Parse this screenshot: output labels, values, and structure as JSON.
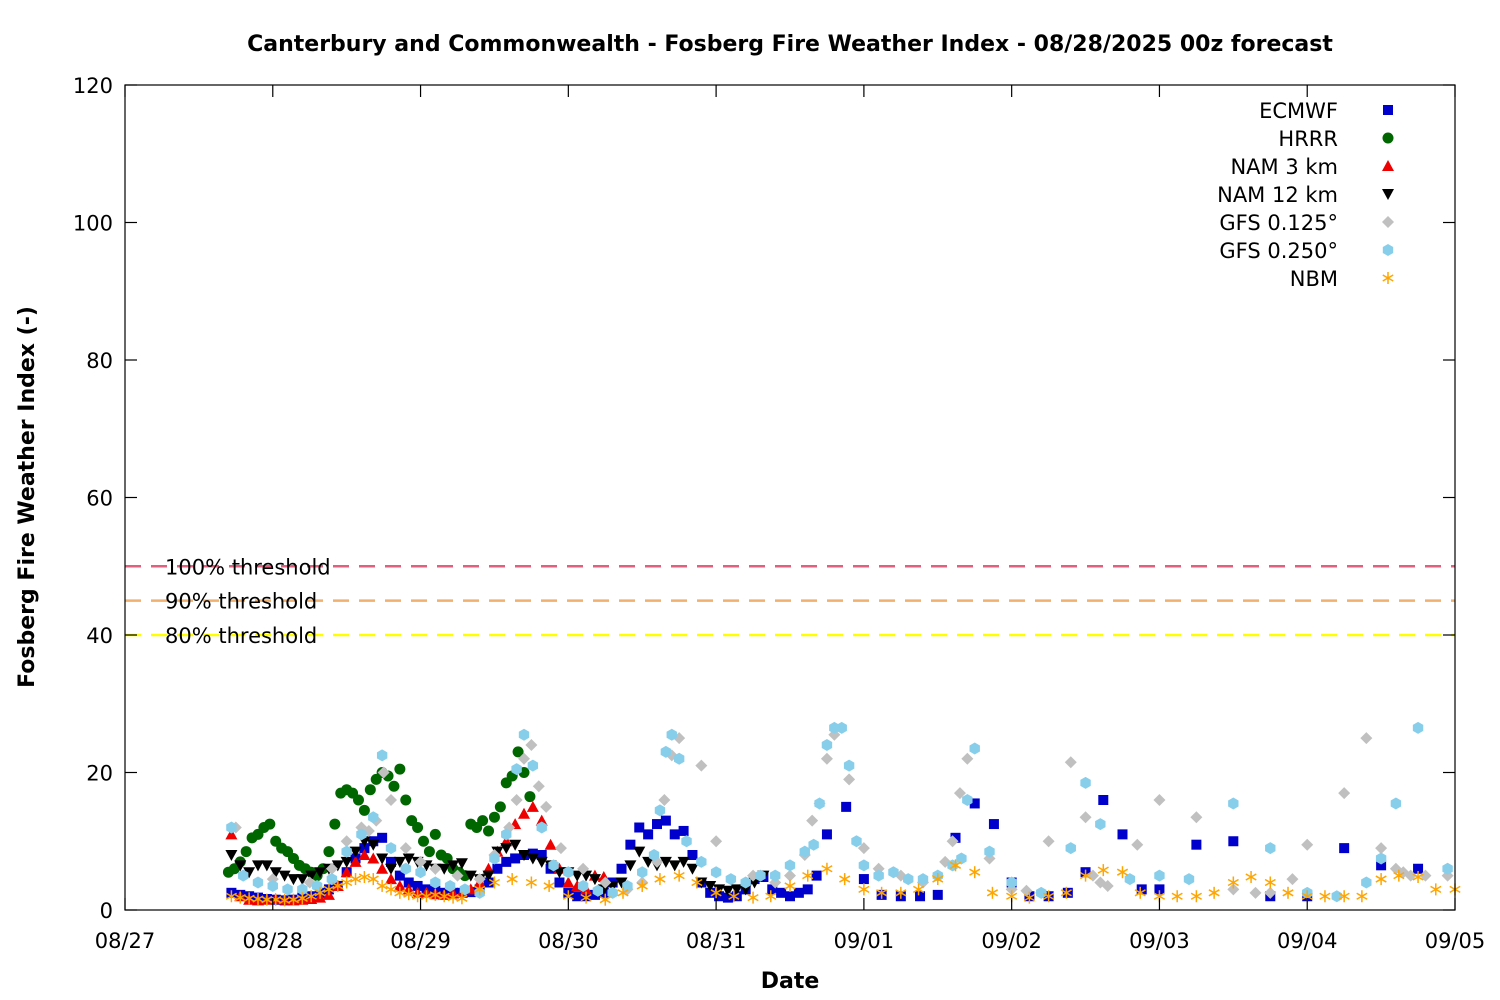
{
  "chart_data": {
    "type": "scatter",
    "title": "Canterbury and Commonwealth - Fosberg Fire Weather Index - 08/28/2025 00z forecast",
    "xlabel": "Date",
    "ylabel": "Fosberg Fire Weather Index (-)",
    "xlim": [
      "08/27",
      "09/05"
    ],
    "ylim": [
      0,
      120
    ],
    "x_unit": "days (fractional) from 08/27",
    "x_ticks": [
      "08/27",
      "08/28",
      "08/29",
      "08/30",
      "08/31",
      "09/01",
      "09/02",
      "09/03",
      "09/04",
      "09/05"
    ],
    "y_ticks": [
      0,
      20,
      40,
      60,
      80,
      100,
      120
    ],
    "grid": false,
    "legend_position": "top-right",
    "thresholds": [
      {
        "label": "100% threshold",
        "value": 50,
        "color": "#e0607e"
      },
      {
        "label": "90% threshold",
        "value": 45,
        "color": "#f0b070"
      },
      {
        "label": "80% threshold",
        "value": 40,
        "color": "#ffff00"
      }
    ],
    "series": [
      {
        "name": "ECMWF",
        "marker": "square",
        "color": "#0000cc",
        "x": [
          0.72,
          0.78,
          0.84,
          0.9,
          0.96,
          1.02,
          1.08,
          1.14,
          1.2,
          1.26,
          1.32,
          1.38,
          1.44,
          1.5,
          1.56,
          1.62,
          1.68,
          1.74,
          1.8,
          1.86,
          1.92,
          1.98,
          2.04,
          2.1,
          2.16,
          2.22,
          2.28,
          2.34,
          2.4,
          2.46,
          2.52,
          2.58,
          2.64,
          2.7,
          2.76,
          2.82,
          2.88,
          2.94,
          3.0,
          3.06,
          3.12,
          3.18,
          3.24,
          3.3,
          3.36,
          3.42,
          3.48,
          3.54,
          3.6,
          3.66,
          3.72,
          3.78,
          3.84,
          3.9,
          3.96,
          4.02,
          4.08,
          4.14,
          4.2,
          4.26,
          4.32,
          4.38,
          4.44,
          4.5,
          4.56,
          4.62,
          4.68,
          4.75,
          4.88,
          5.0,
          5.12,
          5.25,
          5.38,
          5.5,
          5.62,
          5.75,
          5.88,
          6.0,
          6.12,
          6.25,
          6.38,
          6.5,
          6.62,
          6.75,
          6.88,
          7.0,
          7.25,
          7.5,
          7.75,
          8.0,
          8.25,
          8.5,
          8.75
        ],
        "y": [
          2.5,
          2.2,
          2.0,
          1.8,
          1.6,
          1.5,
          1.4,
          1.5,
          1.8,
          2.0,
          2.5,
          3.0,
          3.5,
          5.5,
          7.5,
          9.0,
          10.0,
          10.5,
          7.0,
          5.0,
          4.0,
          3.5,
          3.0,
          2.8,
          2.5,
          2.5,
          2.5,
          2.6,
          3.0,
          4.0,
          6.0,
          7.0,
          7.5,
          8.0,
          8.2,
          8.0,
          6.0,
          4.0,
          2.5,
          2.0,
          2.0,
          2.2,
          2.5,
          4.0,
          6.0,
          9.5,
          12.0,
          11.0,
          12.5,
          13.0,
          11.0,
          11.5,
          8.0,
          4.0,
          2.5,
          2.0,
          1.8,
          2.0,
          3.0,
          4.5,
          4.8,
          3.0,
          2.5,
          2.0,
          2.5,
          3.0,
          5.0,
          11.0,
          15.0,
          4.5,
          2.2,
          2.0,
          2.0,
          2.2,
          10.5,
          15.5,
          12.5,
          4.0,
          2.0,
          2.0,
          2.5,
          5.5,
          16.0,
          11.0,
          3.0,
          3.0,
          9.5,
          10.0,
          2.0,
          2.0,
          9.0,
          6.5,
          6.0
        ]
      },
      {
        "name": "HRRR",
        "marker": "circle",
        "color": "#006600",
        "x": [
          0.7,
          0.74,
          0.78,
          0.82,
          0.86,
          0.9,
          0.94,
          0.98,
          1.02,
          1.06,
          1.1,
          1.14,
          1.18,
          1.22,
          1.26,
          1.3,
          1.34,
          1.38,
          1.42,
          1.46,
          1.5,
          1.54,
          1.58,
          1.62,
          1.66,
          1.7,
          1.74,
          1.78,
          1.82,
          1.86,
          1.9,
          1.94,
          1.98,
          2.02,
          2.06,
          2.1,
          2.14,
          2.18,
          2.22,
          2.26,
          2.3,
          2.34,
          2.38,
          2.42,
          2.46,
          2.5,
          2.54,
          2.58,
          2.62,
          2.66,
          2.7,
          2.74
        ],
        "y": [
          5.5,
          6.0,
          7.0,
          8.5,
          10.5,
          11.0,
          12.0,
          12.5,
          10.0,
          9.0,
          8.5,
          7.5,
          6.5,
          6.0,
          5.5,
          5.0,
          6.0,
          8.5,
          12.5,
          17.0,
          17.5,
          17.0,
          16.0,
          14.5,
          17.5,
          19.0,
          20.0,
          19.5,
          18.0,
          20.5,
          16.0,
          13.0,
          12.0,
          10.0,
          8.5,
          11.0,
          8.0,
          7.5,
          6.0,
          5.5,
          5.0,
          12.5,
          12.0,
          13.0,
          11.5,
          13.5,
          15.0,
          18.5,
          19.5,
          23.0,
          20.0,
          16.5
        ]
      },
      {
        "name": "NAM 3 km",
        "marker": "triangle-up",
        "color": "#ee0000",
        "x": [
          0.72,
          0.78,
          0.84,
          0.9,
          0.96,
          1.02,
          1.08,
          1.14,
          1.2,
          1.26,
          1.32,
          1.38,
          1.44,
          1.5,
          1.56,
          1.62,
          1.68,
          1.74,
          1.8,
          1.86,
          1.92,
          1.98,
          2.04,
          2.1,
          2.16,
          2.22,
          2.28,
          2.34,
          2.4,
          2.46,
          2.52,
          2.58,
          2.64,
          2.7,
          2.76,
          2.82,
          2.88,
          2.94,
          3.0,
          3.06,
          3.12,
          3.18,
          3.24
        ],
        "y": [
          11.0,
          2.0,
          1.5,
          1.4,
          1.5,
          1.6,
          1.5,
          1.4,
          1.5,
          1.6,
          1.8,
          2.2,
          3.5,
          5.5,
          7.0,
          8.0,
          7.5,
          6.0,
          4.5,
          3.5,
          3.0,
          2.5,
          2.5,
          2.3,
          2.2,
          2.4,
          2.5,
          3.0,
          4.0,
          6.0,
          8.5,
          10.0,
          12.5,
          14.0,
          15.0,
          13.0,
          9.5,
          6.0,
          4.0,
          3.5,
          3.0,
          5.0,
          4.8
        ]
      },
      {
        "name": "NAM 12 km",
        "marker": "triangle-down",
        "color": "#000000",
        "x": [
          0.72,
          0.78,
          0.84,
          0.9,
          0.96,
          1.02,
          1.08,
          1.14,
          1.2,
          1.26,
          1.32,
          1.38,
          1.44,
          1.5,
          1.56,
          1.62,
          1.68,
          1.74,
          1.8,
          1.86,
          1.92,
          1.98,
          2.04,
          2.1,
          2.16,
          2.22,
          2.28,
          2.34,
          2.4,
          2.46,
          2.52,
          2.58,
          2.64,
          2.7,
          2.76,
          2.82,
          2.88,
          2.94,
          3.0,
          3.06,
          3.12,
          3.18,
          3.24,
          3.3,
          3.36,
          3.42,
          3.48,
          3.54,
          3.6,
          3.66,
          3.72,
          3.78,
          3.84,
          3.9,
          3.96,
          4.02,
          4.08,
          4.14,
          4.2,
          4.26,
          4.32
        ],
        "y": [
          8.0,
          6.5,
          5.5,
          6.5,
          6.5,
          5.5,
          5.0,
          4.5,
          4.5,
          5.0,
          5.5,
          6.0,
          6.5,
          7.0,
          8.5,
          10.0,
          9.5,
          7.5,
          6.0,
          7.0,
          7.5,
          7.0,
          6.5,
          6.0,
          6.0,
          6.5,
          6.8,
          5.0,
          4.5,
          5.0,
          8.5,
          9.0,
          9.5,
          8.0,
          7.5,
          7.0,
          6.5,
          5.5,
          5.5,
          5.0,
          5.0,
          4.5,
          3.0,
          3.5,
          4.0,
          6.5,
          8.5,
          7.0,
          6.5,
          7.0,
          6.5,
          7.0,
          6.0,
          4.0,
          3.5,
          3.0,
          2.8,
          3.0,
          3.0,
          4.0,
          5.0
        ]
      },
      {
        "name": "GFS 0.125°",
        "marker": "diamond",
        "color": "#c0c0c0",
        "x": [
          0.75,
          1.0,
          1.25,
          1.4,
          1.5,
          1.6,
          1.65,
          1.7,
          1.75,
          1.8,
          1.9,
          2.0,
          2.1,
          2.25,
          2.4,
          2.5,
          2.6,
          2.65,
          2.7,
          2.75,
          2.8,
          2.85,
          2.95,
          3.1,
          3.25,
          3.4,
          3.5,
          3.6,
          3.65,
          3.7,
          3.75,
          3.9,
          4.0,
          4.25,
          4.4,
          4.5,
          4.6,
          4.65,
          4.7,
          4.75,
          4.8,
          4.9,
          5.0,
          5.1,
          5.25,
          5.4,
          5.5,
          5.55,
          5.6,
          5.65,
          5.7,
          5.85,
          6.0,
          6.1,
          6.2,
          6.25,
          6.4,
          6.5,
          6.55,
          6.6,
          6.65,
          6.85,
          7.0,
          7.25,
          7.5,
          7.65,
          7.75,
          7.9,
          8.0,
          8.25,
          8.4,
          8.5,
          8.6,
          8.65,
          8.7,
          8.8,
          8.95
        ],
        "y": [
          12.0,
          4.5,
          4.0,
          6.0,
          10.0,
          12.0,
          11.5,
          13.0,
          20.0,
          16.0,
          9.0,
          7.0,
          6.0,
          5.0,
          4.5,
          8.0,
          12.0,
          16.0,
          22.0,
          24.0,
          18.0,
          15.0,
          9.0,
          6.0,
          4.0,
          3.0,
          4.0,
          7.0,
          16.0,
          22.5,
          25.0,
          21.0,
          10.0,
          5.0,
          4.0,
          5.0,
          8.0,
          13.0,
          15.5,
          22.0,
          25.5,
          19.0,
          9.0,
          6.0,
          5.0,
          4.0,
          5.0,
          7.0,
          10.0,
          17.0,
          22.0,
          7.5,
          3.0,
          2.8,
          2.5,
          10.0,
          21.5,
          13.5,
          5.0,
          4.0,
          3.5,
          9.5,
          16.0,
          13.5,
          3.0,
          2.5,
          2.5,
          4.5,
          9.5,
          17.0,
          25.0,
          9.0,
          6.0,
          5.5,
          5.0,
          5.0,
          5.0
        ]
      },
      {
        "name": "GFS 0.250°",
        "marker": "hexagon",
        "color": "#87ceeb",
        "x": [
          0.72,
          0.8,
          0.9,
          1.0,
          1.1,
          1.2,
          1.3,
          1.4,
          1.5,
          1.6,
          1.68,
          1.74,
          1.8,
          1.9,
          2.0,
          2.1,
          2.2,
          2.3,
          2.4,
          2.5,
          2.58,
          2.65,
          2.7,
          2.76,
          2.82,
          2.9,
          3.0,
          3.1,
          3.2,
          3.3,
          3.4,
          3.5,
          3.58,
          3.62,
          3.66,
          3.7,
          3.75,
          3.8,
          3.9,
          4.0,
          4.1,
          4.2,
          4.3,
          4.4,
          4.5,
          4.6,
          4.66,
          4.7,
          4.75,
          4.8,
          4.85,
          4.9,
          4.95,
          5.0,
          5.1,
          5.2,
          5.3,
          5.4,
          5.5,
          5.6,
          5.66,
          5.7,
          5.75,
          5.85,
          6.0,
          6.2,
          6.4,
          6.5,
          6.6,
          6.8,
          7.0,
          7.2,
          7.5,
          7.75,
          8.0,
          8.2,
          8.4,
          8.5,
          8.6,
          8.75,
          8.95
        ],
        "y": [
          12.0,
          5.0,
          4.0,
          3.5,
          3.0,
          3.0,
          3.5,
          4.5,
          8.5,
          11.0,
          13.5,
          22.5,
          9.0,
          6.0,
          5.5,
          4.0,
          3.5,
          3.0,
          2.5,
          7.5,
          11.0,
          20.5,
          25.5,
          21.0,
          12.0,
          6.5,
          5.5,
          3.5,
          2.8,
          2.5,
          3.5,
          5.5,
          8.0,
          14.5,
          23.0,
          25.5,
          22.0,
          10.0,
          7.0,
          5.5,
          4.5,
          4.0,
          5.0,
          5.0,
          6.5,
          8.5,
          9.5,
          15.5,
          24.0,
          26.5,
          26.5,
          21.0,
          10.0,
          6.5,
          5.0,
          5.5,
          4.5,
          4.5,
          5.0,
          6.5,
          7.5,
          16.0,
          23.5,
          8.5,
          4.0,
          2.5,
          9.0,
          18.5,
          12.5,
          4.5,
          5.0,
          4.5,
          15.5,
          9.0,
          2.5,
          2.0,
          4.0,
          7.5,
          15.5,
          26.5,
          6.0
        ]
      },
      {
        "name": "NBM",
        "marker": "asterisk",
        "color": "#ffa500",
        "x": [
          0.72,
          0.78,
          0.84,
          0.9,
          0.96,
          1.02,
          1.08,
          1.14,
          1.2,
          1.26,
          1.32,
          1.38,
          1.44,
          1.5,
          1.56,
          1.62,
          1.68,
          1.74,
          1.8,
          1.86,
          1.92,
          1.98,
          2.04,
          2.1,
          2.16,
          2.22,
          2.28,
          2.4,
          2.5,
          2.62,
          2.75,
          2.87,
          3.0,
          3.12,
          3.25,
          3.37,
          3.5,
          3.62,
          3.75,
          3.87,
          4.0,
          4.12,
          4.25,
          4.37,
          4.5,
          4.62,
          4.75,
          4.87,
          5.0,
          5.12,
          5.25,
          5.37,
          5.5,
          5.62,
          5.75,
          5.87,
          6.0,
          6.12,
          6.25,
          6.37,
          6.5,
          6.62,
          6.75,
          6.87,
          7.0,
          7.12,
          7.25,
          7.37,
          7.5,
          7.62,
          7.75,
          7.87,
          8.0,
          8.12,
          8.25,
          8.37,
          8.5,
          8.62,
          8.75,
          8.87,
          9.0
        ],
        "y": [
          2.0,
          1.8,
          1.7,
          1.6,
          1.5,
          1.5,
          1.4,
          1.5,
          1.7,
          2.0,
          2.5,
          3.0,
          3.5,
          4.0,
          4.5,
          4.8,
          4.5,
          3.5,
          3.0,
          2.5,
          2.3,
          2.0,
          2.0,
          2.2,
          2.0,
          1.8,
          1.7,
          3.0,
          4.0,
          4.5,
          4.0,
          3.5,
          2.0,
          1.8,
          1.5,
          2.5,
          3.5,
          4.5,
          5.0,
          4.0,
          2.5,
          2.0,
          1.8,
          2.0,
          3.5,
          5.0,
          6.0,
          4.5,
          3.0,
          2.5,
          2.5,
          3.0,
          4.5,
          6.5,
          5.5,
          2.5,
          2.0,
          1.8,
          2.0,
          2.5,
          5.0,
          5.8,
          5.5,
          2.5,
          2.0,
          2.0,
          2.0,
          2.5,
          4.0,
          4.8,
          4.0,
          2.5,
          2.0,
          2.0,
          2.0,
          2.0,
          4.5,
          5.0,
          4.8,
          3.0,
          3.0
        ]
      }
    ]
  }
}
